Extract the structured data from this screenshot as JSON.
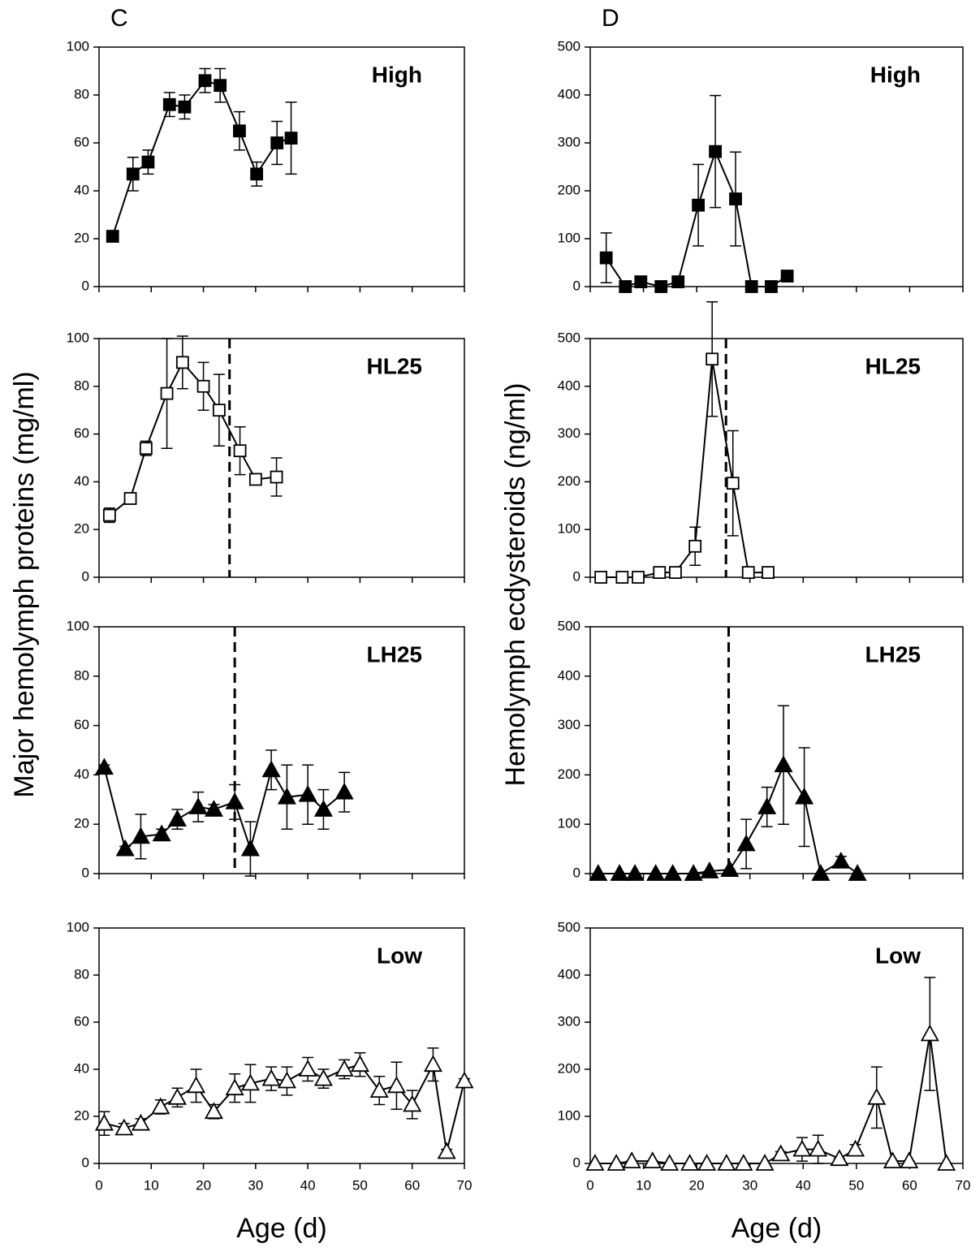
{
  "chart_data": [
    {
      "type": "line",
      "panel_label": "C",
      "title": "High",
      "ylabel": "Major hemolymph proteins (mg/ml)",
      "marker": "square",
      "marker_fill": "#000",
      "color": "#000",
      "x": [
        2.6,
        6.5,
        9.4,
        13.5,
        16.4,
        20.3,
        23.2,
        26.9,
        30.2,
        34.1,
        36.8
      ],
      "values": [
        21,
        47,
        52,
        76,
        75,
        86,
        84,
        65,
        47,
        60,
        62
      ],
      "errors": [
        2,
        7,
        5,
        5,
        5,
        5,
        7,
        8,
        5,
        9,
        15
      ],
      "xlim": [
        0,
        70
      ],
      "ylim": [
        0,
        100
      ],
      "yticks": [
        0,
        20,
        40,
        60,
        80,
        100
      ]
    },
    {
      "type": "line",
      "title": "HL25",
      "marker": "square",
      "marker_fill": "#fff",
      "color": "#000",
      "x": [
        2,
        6,
        9,
        13,
        16,
        20,
        23,
        27,
        30,
        34
      ],
      "values": [
        26,
        33,
        54,
        77,
        90,
        80,
        70,
        53,
        41,
        42
      ],
      "errors": [
        3,
        1,
        3,
        23,
        11,
        10,
        15,
        10,
        1,
        8
      ],
      "vlines": [
        25
      ],
      "xlim": [
        0,
        70
      ],
      "ylim": [
        0,
        100
      ],
      "yticks": [
        0,
        20,
        40,
        60,
        80,
        100
      ]
    },
    {
      "type": "line",
      "title": "LH25",
      "marker": "triangle",
      "marker_fill": "#000",
      "color": "#000",
      "x": [
        1,
        5,
        8,
        12,
        15,
        19,
        22,
        26,
        29,
        33,
        36,
        40,
        43,
        47
      ],
      "values": [
        43,
        10,
        15,
        16,
        22,
        27,
        26,
        29,
        10,
        42,
        31,
        32,
        26,
        33
      ],
      "errors": [
        1,
        1,
        9,
        2,
        4,
        6,
        2,
        7,
        11,
        8,
        13,
        12,
        8,
        8
      ],
      "vlines": [
        26
      ],
      "xlim": [
        0,
        70
      ],
      "ylim": [
        0,
        100
      ],
      "yticks": [
        0,
        20,
        40,
        60,
        80,
        100
      ]
    },
    {
      "type": "line",
      "title": "Low",
      "xlabel": "Age (d)",
      "marker": "triangle",
      "marker_fill": "#fff",
      "color": "#000",
      "x": [
        1,
        4.8,
        8,
        11.8,
        15,
        18.6,
        22,
        26,
        29,
        33,
        36,
        40,
        43,
        47,
        50,
        53.7,
        57,
        60,
        64,
        66.6,
        70
      ],
      "values": [
        17,
        15,
        17,
        24,
        28,
        33,
        22,
        32,
        34,
        36,
        35,
        40,
        36,
        40,
        42,
        31,
        33,
        25,
        42,
        5,
        35
      ],
      "errors": [
        5,
        2,
        2,
        3,
        4,
        7,
        3,
        6,
        8,
        5,
        6,
        5,
        4,
        4,
        5,
        6,
        10,
        6,
        7,
        1,
        1
      ],
      "xlim": [
        0,
        70
      ],
      "xticks": [
        0,
        10,
        20,
        30,
        40,
        50,
        60,
        70
      ],
      "ylim": [
        0,
        100
      ],
      "yticks": [
        0,
        20,
        40,
        60,
        80,
        100
      ]
    },
    {
      "type": "line",
      "panel_label": "D",
      "title": "High",
      "ylabel": "Hemolymph ecdysteroids (ng/ml)",
      "marker": "square",
      "marker_fill": "#000",
      "color": "#000",
      "x": [
        3,
        6.6,
        9.5,
        13.3,
        16.5,
        20.3,
        23.5,
        27.3,
        30.3,
        34,
        37
      ],
      "values": [
        60,
        0,
        10,
        0,
        10,
        170,
        282,
        183,
        0,
        0,
        22
      ],
      "errors": [
        52,
        0,
        5,
        0,
        5,
        85,
        117,
        98,
        0,
        0,
        5
      ],
      "xlim": [
        0,
        70
      ],
      "ylim": [
        0,
        500
      ],
      "yticks": [
        0,
        100,
        200,
        300,
        400,
        500
      ]
    },
    {
      "type": "line",
      "title": "HL25",
      "marker": "square",
      "marker_fill": "#fff",
      "color": "#000",
      "x": [
        2,
        6,
        9,
        13,
        16,
        19.7,
        22.9,
        26.8,
        29.7,
        33.4
      ],
      "values": [
        0,
        0,
        0,
        10,
        10,
        65,
        457,
        197,
        10,
        10
      ],
      "errors": [
        0,
        0,
        0,
        0,
        0,
        40,
        120,
        110,
        0,
        0
      ],
      "vlines": [
        25.5
      ],
      "xlim": [
        0,
        70
      ],
      "ylim": [
        0,
        500
      ],
      "yticks": [
        0,
        100,
        200,
        300,
        400,
        500
      ]
    },
    {
      "type": "line",
      "title": "LH25",
      "marker": "triangle",
      "marker_fill": "#000",
      "color": "#000",
      "x": [
        1.5,
        5.5,
        8.4,
        12.3,
        15.5,
        19.4,
        22.4,
        26.2,
        29.3,
        33.2,
        36.3,
        40.2,
        43.3,
        47.1,
        50.2
      ],
      "values": [
        0,
        0,
        0,
        0,
        0,
        0,
        5,
        8,
        60,
        135,
        220,
        155,
        0,
        25,
        0
      ],
      "errors": [
        0,
        0,
        0,
        0,
        0,
        0,
        0,
        0,
        50,
        40,
        120,
        100,
        0,
        10,
        0
      ],
      "vlines": [
        26
      ],
      "xlim": [
        0,
        70
      ],
      "ylim": [
        0,
        500
      ],
      "yticks": [
        0,
        100,
        200,
        300,
        400,
        500
      ]
    },
    {
      "type": "line",
      "title": "Low",
      "xlabel": "Age (d)",
      "marker": "triangle",
      "marker_fill": "#fff",
      "color": "#000",
      "x": [
        0.9,
        4.9,
        7.8,
        11.7,
        14.9,
        18.7,
        21.9,
        25.6,
        28.8,
        32.8,
        35.8,
        39.8,
        42.8,
        46.8,
        49.8,
        53.8,
        56.8,
        59.9,
        63.8,
        66.9
      ],
      "values": [
        0,
        0,
        5,
        5,
        0,
        0,
        0,
        0,
        0,
        0,
        20,
        30,
        30,
        10,
        30,
        140,
        5,
        5,
        275,
        0
      ],
      "errors": [
        0,
        0,
        0,
        0,
        0,
        0,
        0,
        0,
        0,
        0,
        5,
        25,
        30,
        0,
        10,
        65,
        0,
        0,
        120,
        0
      ],
      "xlim": [
        0,
        70
      ],
      "xticks": [
        0,
        10,
        20,
        30,
        40,
        50,
        60,
        70
      ],
      "ylim": [
        0,
        500
      ],
      "yticks": [
        0,
        100,
        200,
        300,
        400,
        500
      ]
    }
  ]
}
